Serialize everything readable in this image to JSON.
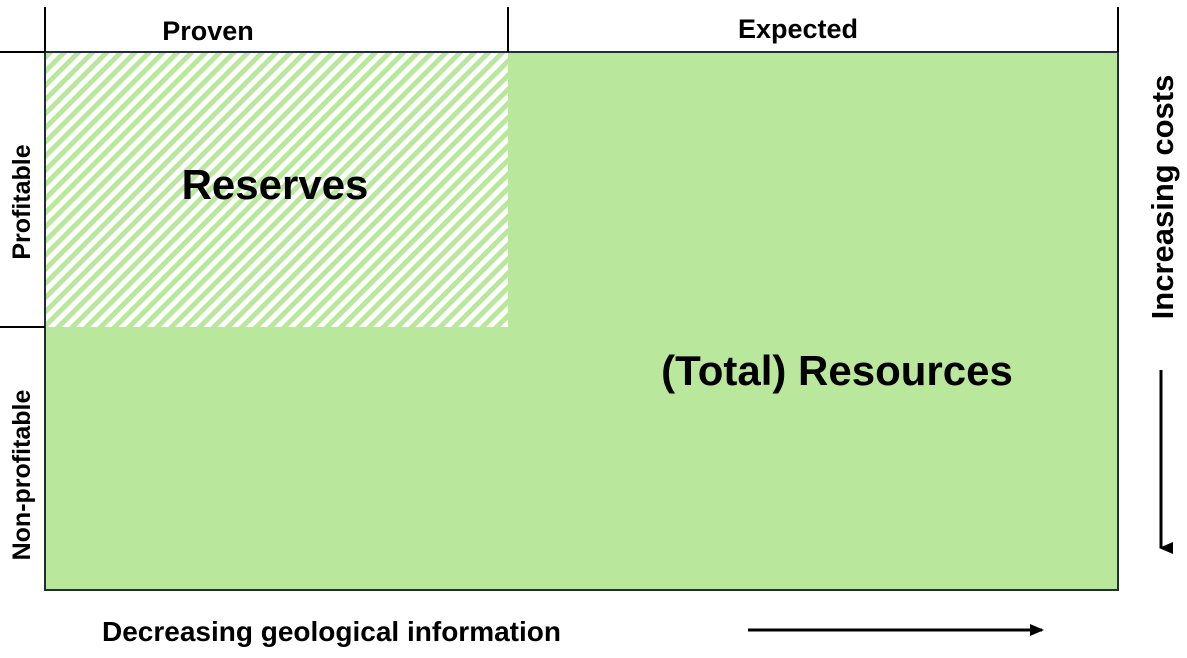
{
  "columns": {
    "proven": "Proven",
    "expected": "Expected"
  },
  "rows": {
    "profitable": "Profitable",
    "non_profitable": "Non-profitable"
  },
  "regions": {
    "reserves": "Reserves",
    "total_resources": "(Total) Resources"
  },
  "axes": {
    "horizontal": "Decreasing geological information",
    "vertical": "Increasing costs"
  },
  "colors": {
    "fill": "#b9e89d",
    "hatch_stripe": "#b9e89d",
    "border": "#1f2d3d",
    "text": "#000000"
  }
}
